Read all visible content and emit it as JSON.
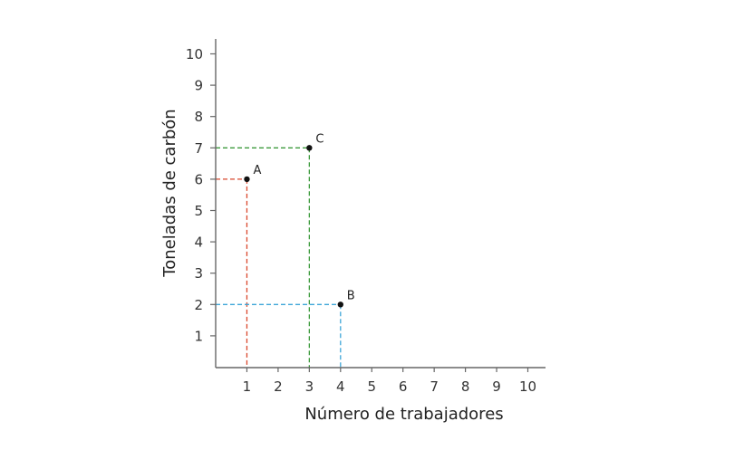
{
  "chart_data": {
    "type": "scatter",
    "title": "",
    "xlabel": "Número de trabajadores",
    "ylabel": "Toneladas de carbón",
    "xlim": [
      0,
      10.4
    ],
    "ylim": [
      0,
      10.5
    ],
    "xticks": [
      1,
      2,
      3,
      4,
      5,
      6,
      7,
      8,
      9,
      10
    ],
    "yticks": [
      1,
      2,
      3,
      4,
      5,
      6,
      7,
      8,
      9,
      10
    ],
    "grid": false,
    "legend": null,
    "points": [
      {
        "label": "A",
        "x": 1,
        "y": 6,
        "guide_color": "#d9472b"
      },
      {
        "label": "B",
        "x": 4,
        "y": 2,
        "guide_color": "#3ea6d8"
      },
      {
        "label": "C",
        "x": 3,
        "y": 7,
        "guide_color": "#3c9a3c"
      }
    ],
    "guides": "dashed lines from each point to both axes"
  }
}
